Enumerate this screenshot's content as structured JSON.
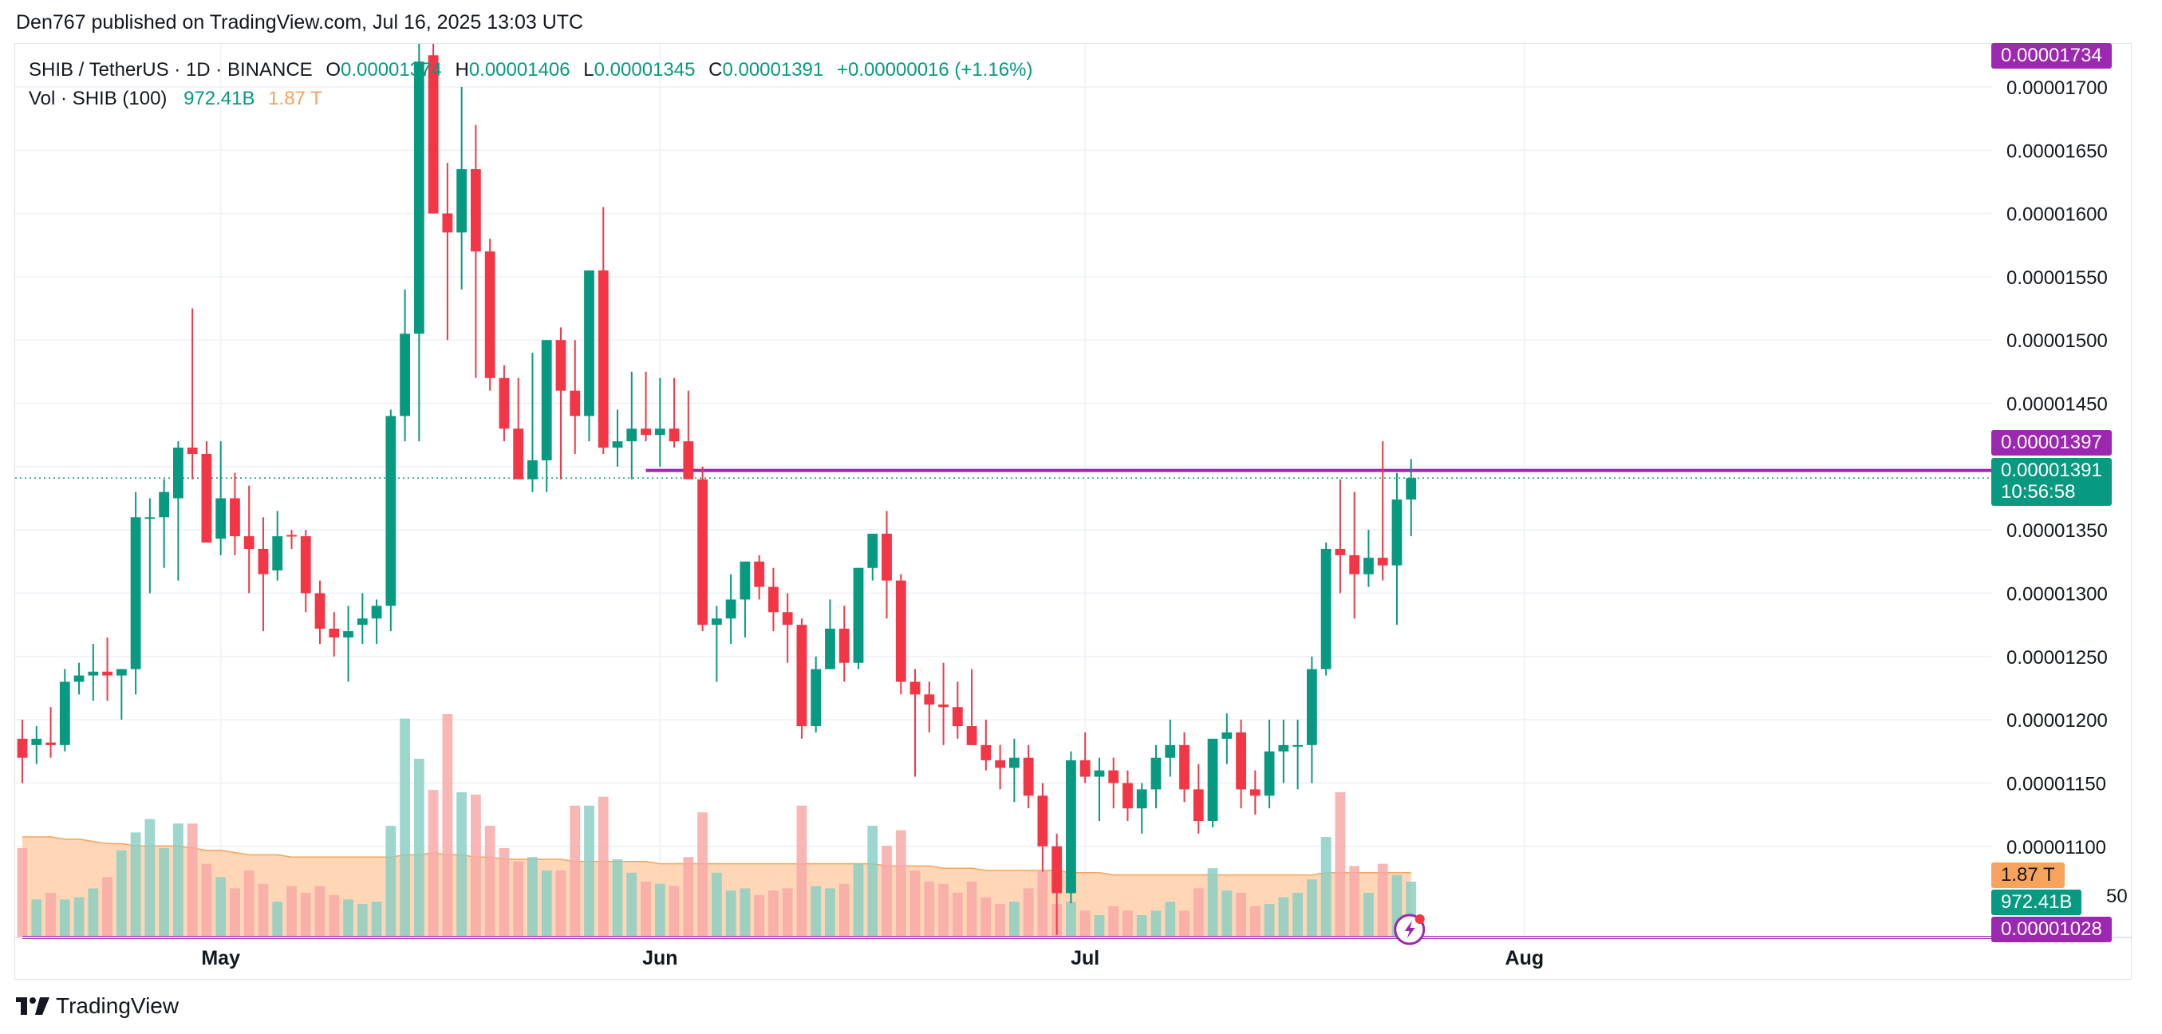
{
  "header": {
    "publisher": "Den767 published on TradingView.com, Jul 16, 2025 13:03 UTC"
  },
  "legend": {
    "symbol": "SHIB / TetherUS · 1D · BINANCE",
    "o_label": "O",
    "o_value": "0.00001374",
    "h_label": "H",
    "h_value": "0.00001406",
    "l_label": "L",
    "l_value": "0.00001345",
    "c_label": "C",
    "c_value": "0.00001391",
    "change": "+0.00000016 (+1.16%)",
    "vol_label": "Vol · SHIB (100)",
    "vol_value": "972.41B",
    "vol_ma_value": "1.87 T"
  },
  "price_tags": {
    "top": "0.00001734",
    "resistance": "0.00001397",
    "last_price": "0.00001391",
    "countdown": "10:56:58",
    "bottom": "0.00001028",
    "vol_ma": "1.87 T",
    "vol": "972.41B",
    "partial_tick": "50"
  },
  "footer": {
    "brand": "TradingView"
  },
  "colors": {
    "up": "#089981",
    "down": "#f23645",
    "up_vol": "#8ccfc3",
    "down_vol": "#f7a9a7",
    "vol_ma_fill": "#ffcfa9",
    "level_line": "#9c27b0",
    "last_price_line": "#089981"
  },
  "icons": {
    "logo": "tradingview-logo-icon",
    "alert": "lightning-alert-icon"
  },
  "chart_data": {
    "type": "candlestick",
    "interval": "1D",
    "y_axis": {
      "ticks": [
        "0.00001700",
        "0.00001650",
        "0.00001600",
        "0.00001550",
        "0.00001500",
        "0.00001450",
        "0.00001400",
        "0.00001350",
        "0.00001300",
        "0.00001250",
        "0.00001200",
        "0.00001150",
        "0.00001100"
      ],
      "tick_values": [
        1700,
        1650,
        1600,
        1550,
        1500,
        1450,
        1400,
        1350,
        1300,
        1250,
        1200,
        1150,
        1100
      ],
      "unit_multiplier": 1e-08,
      "ylim": [
        1028,
        1734
      ]
    },
    "x_axis": {
      "month_labels": [
        "May",
        "Jun",
        "Jul",
        "Aug"
      ],
      "first_date": "2025-04-17",
      "last_date": "2025-07-16",
      "axis_end_date": "2025-09-03"
    },
    "levels": [
      {
        "name": "resistance",
        "value": 1397,
        "from": "2025-05-31"
      },
      {
        "name": "support",
        "value": 1028,
        "from": "2025-04-17"
      }
    ],
    "ohlc": [
      [
        1185,
        1200,
        1150,
        1170
      ],
      [
        1180,
        1195,
        1165,
        1185
      ],
      [
        1182,
        1210,
        1170,
        1180
      ],
      [
        1180,
        1240,
        1175,
        1230
      ],
      [
        1230,
        1245,
        1220,
        1235
      ],
      [
        1235,
        1260,
        1215,
        1238
      ],
      [
        1238,
        1265,
        1215,
        1235
      ],
      [
        1235,
        1240,
        1200,
        1240
      ],
      [
        1240,
        1380,
        1220,
        1360
      ],
      [
        1360,
        1375,
        1300,
        1360
      ],
      [
        1360,
        1390,
        1320,
        1380
      ],
      [
        1375,
        1420,
        1310,
        1415
      ],
      [
        1415,
        1525,
        1390,
        1410
      ],
      [
        1410,
        1420,
        1340,
        1340
      ],
      [
        1343,
        1420,
        1330,
        1375
      ],
      [
        1375,
        1395,
        1330,
        1345
      ],
      [
        1345,
        1385,
        1300,
        1335
      ],
      [
        1335,
        1360,
        1270,
        1315
      ],
      [
        1318,
        1365,
        1310,
        1345
      ],
      [
        1346,
        1350,
        1335,
        1345
      ],
      [
        1345,
        1350,
        1285,
        1300
      ],
      [
        1300,
        1310,
        1260,
        1272
      ],
      [
        1272,
        1285,
        1250,
        1265
      ],
      [
        1265,
        1290,
        1230,
        1270
      ],
      [
        1275,
        1300,
        1260,
        1280
      ],
      [
        1280,
        1295,
        1260,
        1290
      ],
      [
        1290,
        1445,
        1270,
        1440
      ],
      [
        1440,
        1540,
        1420,
        1505
      ],
      [
        1505,
        1750,
        1420,
        1720
      ],
      [
        1725,
        1760,
        1600,
        1600
      ],
      [
        1600,
        1640,
        1500,
        1585
      ],
      [
        1585,
        1700,
        1540,
        1635
      ],
      [
        1635,
        1670,
        1470,
        1570
      ],
      [
        1570,
        1580,
        1460,
        1470
      ],
      [
        1470,
        1480,
        1420,
        1430
      ],
      [
        1430,
        1470,
        1390,
        1390
      ],
      [
        1390,
        1490,
        1380,
        1405
      ],
      [
        1405,
        1500,
        1380,
        1500
      ],
      [
        1500,
        1510,
        1390,
        1460
      ],
      [
        1460,
        1500,
        1410,
        1440
      ],
      [
        1440,
        1555,
        1420,
        1555
      ],
      [
        1555,
        1605,
        1410,
        1415
      ],
      [
        1415,
        1445,
        1400,
        1420
      ],
      [
        1420,
        1475,
        1390,
        1430
      ],
      [
        1430,
        1475,
        1420,
        1425
      ],
      [
        1425,
        1470,
        1400,
        1430
      ],
      [
        1430,
        1470,
        1415,
        1420
      ],
      [
        1420,
        1460,
        1390,
        1390
      ],
      [
        1390,
        1400,
        1270,
        1275
      ],
      [
        1275,
        1290,
        1230,
        1280
      ],
      [
        1280,
        1315,
        1260,
        1295
      ],
      [
        1295,
        1325,
        1265,
        1325
      ],
      [
        1325,
        1330,
        1295,
        1305
      ],
      [
        1305,
        1320,
        1270,
        1285
      ],
      [
        1285,
        1300,
        1245,
        1275
      ],
      [
        1275,
        1280,
        1185,
        1195
      ],
      [
        1195,
        1250,
        1190,
        1240
      ],
      [
        1240,
        1295,
        1240,
        1272
      ],
      [
        1272,
        1290,
        1230,
        1245
      ],
      [
        1245,
        1320,
        1240,
        1320
      ],
      [
        1320,
        1345,
        1310,
        1347
      ],
      [
        1347,
        1365,
        1280,
        1310
      ],
      [
        1310,
        1315,
        1220,
        1230
      ],
      [
        1230,
        1240,
        1155,
        1220
      ],
      [
        1220,
        1230,
        1190,
        1212
      ],
      [
        1212,
        1245,
        1180,
        1210
      ],
      [
        1210,
        1230,
        1185,
        1195
      ],
      [
        1195,
        1240,
        1180,
        1180
      ],
      [
        1180,
        1200,
        1160,
        1168
      ],
      [
        1168,
        1180,
        1145,
        1162
      ],
      [
        1162,
        1185,
        1135,
        1170
      ],
      [
        1170,
        1180,
        1130,
        1140
      ],
      [
        1140,
        1150,
        1080,
        1100
      ],
      [
        1100,
        1110,
        1030,
        1063
      ],
      [
        1063,
        1175,
        1055,
        1168
      ],
      [
        1168,
        1190,
        1150,
        1155
      ],
      [
        1155,
        1170,
        1120,
        1160
      ],
      [
        1160,
        1170,
        1130,
        1150
      ],
      [
        1150,
        1160,
        1120,
        1130
      ],
      [
        1130,
        1150,
        1110,
        1145
      ],
      [
        1145,
        1180,
        1130,
        1170
      ],
      [
        1170,
        1200,
        1155,
        1180
      ],
      [
        1180,
        1190,
        1135,
        1145
      ],
      [
        1145,
        1165,
        1110,
        1120
      ],
      [
        1120,
        1185,
        1115,
        1185
      ],
      [
        1185,
        1205,
        1165,
        1190
      ],
      [
        1190,
        1200,
        1130,
        1145
      ],
      [
        1145,
        1160,
        1125,
        1140
      ],
      [
        1140,
        1200,
        1130,
        1175
      ],
      [
        1175,
        1200,
        1150,
        1180
      ],
      [
        1180,
        1200,
        1145,
        1180
      ],
      [
        1180,
        1250,
        1150,
        1240
      ],
      [
        1240,
        1340,
        1235,
        1335
      ],
      [
        1335,
        1390,
        1300,
        1330
      ],
      [
        1330,
        1380,
        1280,
        1315
      ],
      [
        1315,
        1350,
        1305,
        1328
      ],
      [
        1328,
        1420,
        1310,
        1322
      ],
      [
        1322,
        1395,
        1275,
        1374
      ],
      [
        1374,
        1406,
        1345,
        1391
      ]
    ],
    "volume_relative": [
      0.4,
      0.17,
      0.2,
      0.17,
      0.18,
      0.22,
      0.27,
      0.39,
      0.47,
      0.53,
      0.4,
      0.51,
      0.51,
      0.33,
      0.27,
      0.22,
      0.3,
      0.24,
      0.16,
      0.23,
      0.2,
      0.23,
      0.19,
      0.17,
      0.15,
      0.16,
      0.5,
      0.98,
      0.8,
      0.66,
      1.0,
      0.65,
      0.64,
      0.5,
      0.4,
      0.34,
      0.36,
      0.3,
      0.3,
      0.59,
      0.59,
      0.63,
      0.35,
      0.29,
      0.25,
      0.24,
      0.23,
      0.36,
      0.56,
      0.29,
      0.21,
      0.22,
      0.19,
      0.21,
      0.22,
      0.59,
      0.23,
      0.22,
      0.24,
      0.33,
      0.5,
      0.41,
      0.48,
      0.3,
      0.25,
      0.24,
      0.2,
      0.25,
      0.18,
      0.15,
      0.16,
      0.22,
      0.3,
      0.15,
      0.16,
      0.12,
      0.1,
      0.14,
      0.12,
      0.1,
      0.12,
      0.16,
      0.12,
      0.22,
      0.31,
      0.21,
      0.2,
      0.14,
      0.15,
      0.18,
      0.2,
      0.26,
      0.45,
      0.65,
      0.32,
      0.2,
      0.33,
      0.28,
      0.25
    ],
    "volume_ma_relative": [
      0.45,
      0.45,
      0.45,
      0.44,
      0.44,
      0.43,
      0.42,
      0.42,
      0.41,
      0.41,
      0.41,
      0.41,
      0.4,
      0.39,
      0.39,
      0.38,
      0.37,
      0.37,
      0.37,
      0.36,
      0.36,
      0.36,
      0.36,
      0.36,
      0.36,
      0.36,
      0.36,
      0.37,
      0.37,
      0.38,
      0.37,
      0.37,
      0.36,
      0.36,
      0.35,
      0.35,
      0.35,
      0.35,
      0.35,
      0.34,
      0.34,
      0.34,
      0.34,
      0.34,
      0.34,
      0.33,
      0.33,
      0.33,
      0.33,
      0.33,
      0.33,
      0.33,
      0.33,
      0.33,
      0.33,
      0.33,
      0.33,
      0.33,
      0.33,
      0.33,
      0.33,
      0.32,
      0.32,
      0.32,
      0.32,
      0.31,
      0.31,
      0.31,
      0.3,
      0.3,
      0.3,
      0.3,
      0.3,
      0.3,
      0.29,
      0.29,
      0.29,
      0.28,
      0.28,
      0.28,
      0.28,
      0.28,
      0.28,
      0.28,
      0.28,
      0.28,
      0.28,
      0.28,
      0.28,
      0.28,
      0.28,
      0.28,
      0.29,
      0.29,
      0.29,
      0.29,
      0.29,
      0.29,
      0.29
    ]
  }
}
